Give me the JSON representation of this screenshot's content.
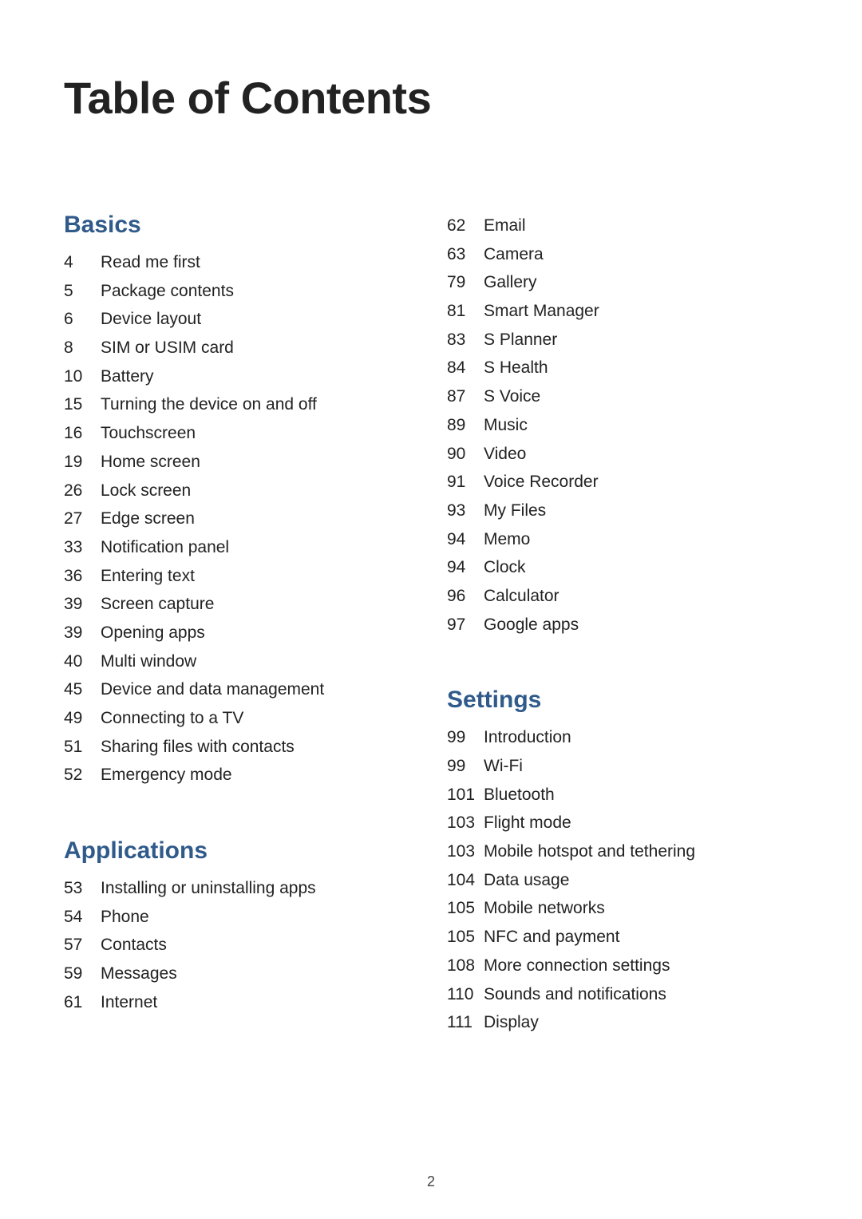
{
  "title": "Table of Contents",
  "page_number": "2",
  "colors": {
    "heading": "#2f5a8a",
    "text": "#222222",
    "background": "#ffffff"
  },
  "typography": {
    "title_fontsize_pt": 42,
    "heading_fontsize_pt": 22,
    "entry_fontsize_pt": 16,
    "font_family": "sans-serif"
  },
  "sections": {
    "basics": {
      "heading": "Basics",
      "items": [
        {
          "page": "4",
          "label": "Read me first"
        },
        {
          "page": "5",
          "label": "Package contents"
        },
        {
          "page": "6",
          "label": "Device layout"
        },
        {
          "page": "8",
          "label": "SIM or USIM card"
        },
        {
          "page": "10",
          "label": "Battery"
        },
        {
          "page": "15",
          "label": "Turning the device on and off"
        },
        {
          "page": "16",
          "label": "Touchscreen"
        },
        {
          "page": "19",
          "label": "Home screen"
        },
        {
          "page": "26",
          "label": "Lock screen"
        },
        {
          "page": "27",
          "label": "Edge screen"
        },
        {
          "page": "33",
          "label": "Notification panel"
        },
        {
          "page": "36",
          "label": "Entering text"
        },
        {
          "page": "39",
          "label": "Screen capture"
        },
        {
          "page": "39",
          "label": "Opening apps"
        },
        {
          "page": "40",
          "label": "Multi window"
        },
        {
          "page": "45",
          "label": "Device and data management"
        },
        {
          "page": "49",
          "label": "Connecting to a TV"
        },
        {
          "page": "51",
          "label": "Sharing files with contacts"
        },
        {
          "page": "52",
          "label": "Emergency mode"
        }
      ]
    },
    "applications": {
      "heading": "Applications",
      "items": [
        {
          "page": "53",
          "label": "Installing or uninstalling apps"
        },
        {
          "page": "54",
          "label": "Phone"
        },
        {
          "page": "57",
          "label": "Contacts"
        },
        {
          "page": "59",
          "label": "Messages"
        },
        {
          "page": "61",
          "label": "Internet"
        }
      ]
    },
    "applications_cont": {
      "items": [
        {
          "page": "62",
          "label": "Email"
        },
        {
          "page": "63",
          "label": "Camera"
        },
        {
          "page": "79",
          "label": "Gallery"
        },
        {
          "page": "81",
          "label": "Smart Manager"
        },
        {
          "page": "83",
          "label": "S Planner"
        },
        {
          "page": "84",
          "label": "S Health"
        },
        {
          "page": "87",
          "label": "S Voice"
        },
        {
          "page": "89",
          "label": "Music"
        },
        {
          "page": "90",
          "label": "Video"
        },
        {
          "page": "91",
          "label": "Voice Recorder"
        },
        {
          "page": "93",
          "label": "My Files"
        },
        {
          "page": "94",
          "label": "Memo"
        },
        {
          "page": "94",
          "label": "Clock"
        },
        {
          "page": "96",
          "label": "Calculator"
        },
        {
          "page": "97",
          "label": "Google apps"
        }
      ]
    },
    "settings": {
      "heading": "Settings",
      "items": [
        {
          "page": "99",
          "label": "Introduction"
        },
        {
          "page": "99",
          "label": "Wi-Fi"
        },
        {
          "page": "101",
          "label": "Bluetooth"
        },
        {
          "page": "103",
          "label": "Flight mode"
        },
        {
          "page": "103",
          "label": "Mobile hotspot and tethering"
        },
        {
          "page": "104",
          "label": "Data usage"
        },
        {
          "page": "105",
          "label": "Mobile networks"
        },
        {
          "page": "105",
          "label": "NFC and payment"
        },
        {
          "page": "108",
          "label": "More connection settings"
        },
        {
          "page": "110",
          "label": "Sounds and notifications"
        },
        {
          "page": "111",
          "label": "Display"
        }
      ]
    }
  }
}
